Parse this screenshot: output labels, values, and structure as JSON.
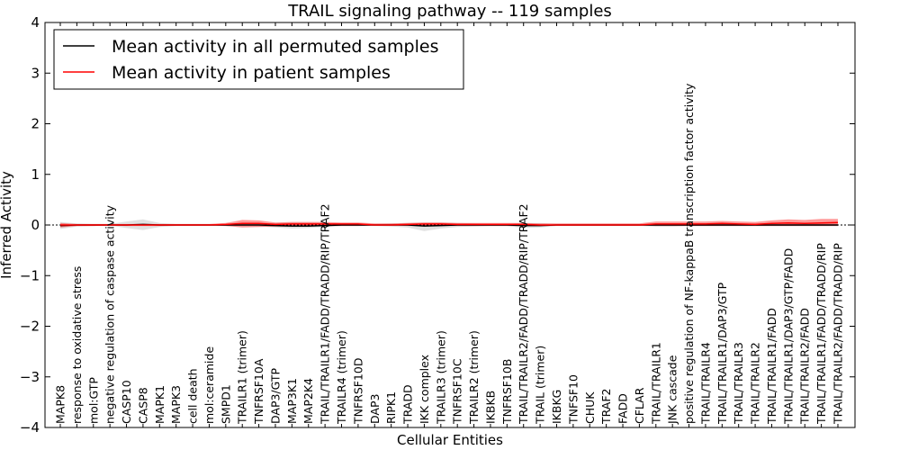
{
  "chart_data": {
    "type": "line",
    "title": "TRAIL signaling pathway -- 119 samples",
    "xlabel": "Cellular Entities",
    "ylabel": "Inferred Activity",
    "ylim": [
      -4,
      4
    ],
    "yticks": [
      "−4",
      "−3",
      "−2",
      "−1",
      "0",
      "1",
      "2",
      "3",
      "4"
    ],
    "legend_position": "top-left",
    "categories": [
      "MAPK8",
      "response to oxidative stress",
      "mol:GTP",
      "negative regulation of caspase activity",
      "CASP10",
      "CASP8",
      "MAPK1",
      "MAPK3",
      "cell death",
      "mol:ceramide",
      "SMPD1",
      "TRAILR1 (trimer)",
      "TNFRSF10A",
      "DAP3/GTP",
      "MAP3K1",
      "MAP2K4",
      "TRAIL/TRAILR1/FADD/TRADD/RIP/TRAF2",
      "TRAILR4 (trimer)",
      "TNFRSF10D",
      "DAP3",
      "RIPK1",
      "TRADD",
      "IKK complex",
      "TRAILR3 (trimer)",
      "TNFRSF10C",
      "TRAILR2 (trimer)",
      "IKBKB",
      "TNFRSF10B",
      "TRAIL/TRAILR2/FADD/TRADD/RIP/TRAF2",
      "TRAIL (trimer)",
      "IKBKG",
      "TNFSF10",
      "CHUK",
      "TRAF2",
      "FADD",
      "CFLAR",
      "TRAIL/TRAILR1",
      "JNK cascade",
      "positive regulation of NF-kappaB transcription factor activity",
      "TRAIL/TRAILR4",
      "TRAIL/TRAILR1/DAP3/GTP",
      "TRAIL/TRAILR3",
      "TRAIL/TRAILR2",
      "TRAIL/TRAILR1/FADD",
      "TRAIL/TRAILR1/DAP3/GTP/FADD",
      "TRAIL/TRAILR2/FADD",
      "TRAIL/TRAILR1/FADD/TRADD/RIP",
      "TRAIL/TRAILR2/FADD/TRADD/RIP"
    ],
    "series": [
      {
        "name": "Mean activity in all permuted samples",
        "color": "#000000",
        "values": [
          -0.01,
          0,
          0,
          0,
          0,
          0.01,
          0,
          0,
          0,
          0,
          0,
          0,
          0,
          -0.01,
          -0.02,
          -0.02,
          -0.01,
          0,
          0,
          0,
          0,
          0,
          -0.02,
          -0.01,
          0,
          0,
          0,
          0,
          -0.01,
          -0.01,
          0,
          0,
          0,
          0,
          0,
          0,
          0,
          0,
          0,
          0,
          0,
          0,
          0,
          0,
          0,
          0,
          0,
          0
        ],
        "band_low": [
          -0.08,
          -0.03,
          -0.02,
          -0.01,
          -0.06,
          -0.1,
          -0.04,
          -0.02,
          -0.02,
          -0.02,
          -0.02,
          -0.02,
          -0.03,
          -0.05,
          -0.07,
          -0.06,
          -0.04,
          -0.02,
          -0.02,
          -0.02,
          -0.03,
          -0.05,
          -0.12,
          -0.07,
          -0.04,
          -0.03,
          -0.02,
          -0.02,
          -0.06,
          -0.05,
          -0.02,
          -0.02,
          -0.02,
          -0.02,
          -0.02,
          -0.02,
          -0.03,
          -0.03,
          -0.02,
          -0.02,
          -0.02,
          -0.02,
          -0.02,
          -0.02,
          -0.02,
          -0.02,
          -0.02,
          -0.02
        ],
        "band_high": [
          0.06,
          0.03,
          0.02,
          0.02,
          0.07,
          0.11,
          0.04,
          0.02,
          0.02,
          0.02,
          0.02,
          0.03,
          0.03,
          0.04,
          0.05,
          0.05,
          0.04,
          0.02,
          0.02,
          0.02,
          0.03,
          0.04,
          0.05,
          0.05,
          0.04,
          0.03,
          0.02,
          0.02,
          0.04,
          0.04,
          0.02,
          0.02,
          0.02,
          0.02,
          0.02,
          0.02,
          0.03,
          0.03,
          0.02,
          0.02,
          0.02,
          0.02,
          0.03,
          0.03,
          0.03,
          0.03,
          0.03,
          0.03
        ]
      },
      {
        "name": "Mean activity in patient samples",
        "color": "#ff0000",
        "values": [
          0,
          0,
          0,
          0,
          0,
          0,
          0,
          0,
          0,
          0,
          0.01,
          0.03,
          0.03,
          0.01,
          0.02,
          0.02,
          0.02,
          0.02,
          0.02,
          0,
          0,
          0.01,
          0.02,
          0.02,
          0.01,
          0.01,
          0.01,
          0.01,
          0.01,
          0,
          0,
          0,
          0,
          0,
          0,
          0,
          0.02,
          0.02,
          0.02,
          0.02,
          0.03,
          0.02,
          0.01,
          0.03,
          0.04,
          0.03,
          0.04,
          0.05
        ],
        "band_low": [
          -0.05,
          -0.02,
          -0.02,
          -0.01,
          -0.02,
          -0.02,
          -0.02,
          -0.01,
          -0.01,
          -0.01,
          -0.02,
          -0.05,
          -0.04,
          -0.03,
          -0.03,
          -0.03,
          -0.02,
          -0.02,
          -0.02,
          -0.01,
          -0.01,
          -0.02,
          -0.02,
          -0.02,
          -0.02,
          -0.02,
          -0.02,
          -0.02,
          -0.02,
          -0.01,
          -0.01,
          -0.01,
          -0.01,
          -0.01,
          -0.01,
          -0.01,
          -0.02,
          -0.02,
          -0.02,
          -0.02,
          -0.02,
          -0.02,
          -0.02,
          -0.02,
          -0.02,
          -0.02,
          -0.02,
          -0.02
        ],
        "band_high": [
          0.04,
          0.02,
          0.02,
          0.02,
          0.02,
          0.02,
          0.02,
          0.02,
          0.02,
          0.02,
          0.04,
          0.1,
          0.09,
          0.05,
          0.06,
          0.06,
          0.06,
          0.05,
          0.05,
          0.03,
          0.03,
          0.04,
          0.05,
          0.05,
          0.04,
          0.04,
          0.04,
          0.04,
          0.04,
          0.03,
          0.03,
          0.03,
          0.03,
          0.03,
          0.03,
          0.03,
          0.07,
          0.07,
          0.07,
          0.07,
          0.08,
          0.07,
          0.06,
          0.09,
          0.11,
          0.1,
          0.12,
          0.12
        ]
      }
    ]
  }
}
